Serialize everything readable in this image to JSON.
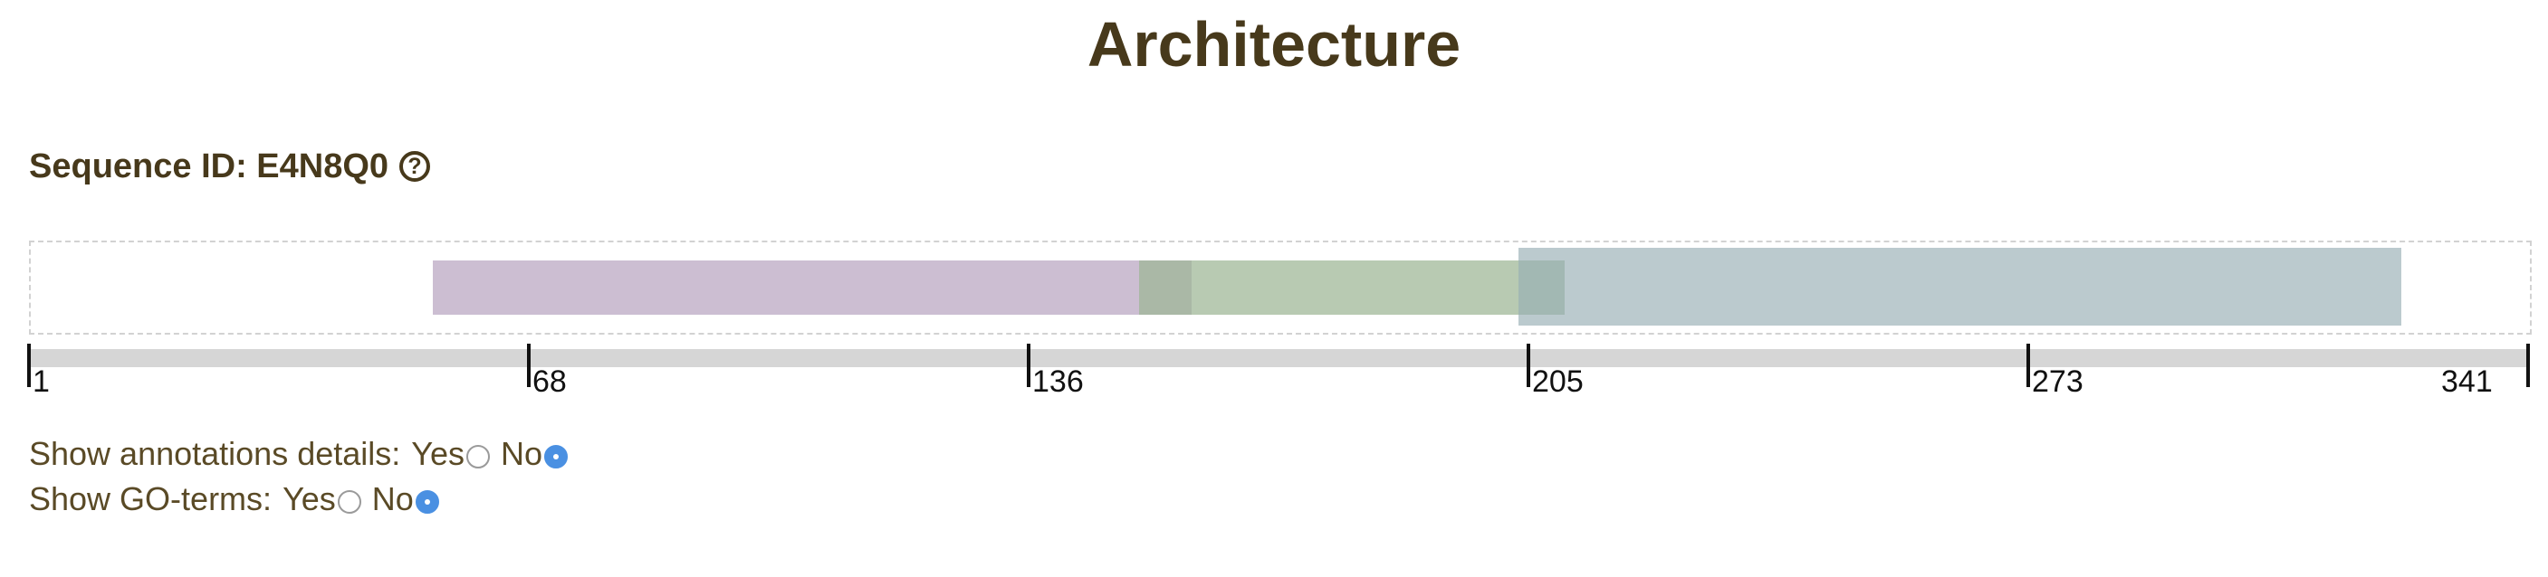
{
  "page": {
    "title": "Architecture"
  },
  "sequence": {
    "label": "Sequence ID: E4N8Q0",
    "help_icon": "help-circle-icon"
  },
  "architecture": {
    "length": 341,
    "domains": [
      {
        "start": 32,
        "end": 148,
        "color": "#b9a5c1",
        "opacity": 0.72
      },
      {
        "start": 140,
        "end": 205,
        "color": "#9db594",
        "opacity": 0.72
      },
      {
        "start": 198,
        "end": 333,
        "color": "#97adb3",
        "opacity": 0.65
      }
    ]
  },
  "ruler": {
    "ticks": [
      "1",
      "68",
      "136",
      "205",
      "273",
      "341"
    ]
  },
  "options": [
    {
      "label": "Show annotations details:",
      "yes_label": "Yes",
      "no_label": "No",
      "selected": "No"
    },
    {
      "label": "Show GO-terms:",
      "yes_label": "Yes",
      "no_label": "No",
      "selected": "No"
    }
  ]
}
